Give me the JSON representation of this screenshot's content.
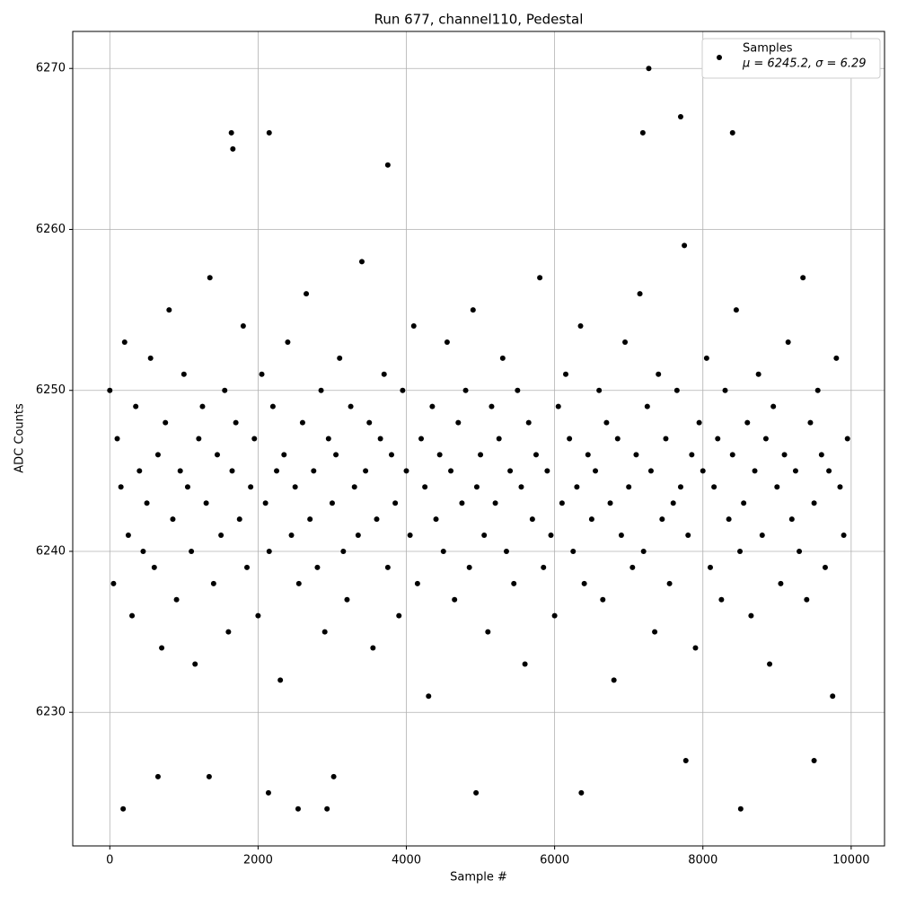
{
  "chart_data": {
    "type": "scatter",
    "title": "Run 677, channel110, Pedestal",
    "x_label": "Sample #",
    "y_label": "ADC Counts",
    "xlim": [
      -500,
      10450
    ],
    "ylim": [
      6221.7,
      6272.3
    ],
    "xticks": [
      0,
      2000,
      4000,
      6000,
      8000,
      10000
    ],
    "yticks": [
      6230,
      6240,
      6250,
      6260,
      6270
    ],
    "grid": true,
    "legend_position": "upper right",
    "annotation": "μ = 6245.2, σ = 6.29",
    "series": [
      {
        "name": "Samples",
        "color": "#000000",
        "x": [
          0,
          50,
          100,
          150,
          200,
          250,
          300,
          350,
          400,
          450,
          500,
          550,
          600,
          650,
          700,
          750,
          800,
          850,
          900,
          950,
          1000,
          1050,
          1100,
          1150,
          1200,
          1250,
          1300,
          1350,
          1400,
          1450,
          1500,
          1550,
          1600,
          1650,
          1700,
          1750,
          1800,
          1850,
          1900,
          1950,
          2000,
          2050,
          2100,
          2150,
          2200,
          2250,
          2300,
          2350,
          2400,
          2450,
          2500,
          2550,
          2600,
          2650,
          2700,
          2750,
          2800,
          2850,
          2900,
          2950,
          3000,
          3050,
          3100,
          3150,
          3200,
          3250,
          3300,
          3350,
          3400,
          3450,
          3500,
          3550,
          3600,
          3650,
          3700,
          3750,
          3800,
          3850,
          3900,
          3950,
          4000,
          4050,
          4100,
          4150,
          4200,
          4250,
          4300,
          4350,
          4400,
          4450,
          4500,
          4550,
          4600,
          4650,
          4700,
          4750,
          4800,
          4850,
          4900,
          4950,
          5000,
          5050,
          5100,
          5150,
          5200,
          5250,
          5300,
          5350,
          5400,
          5450,
          5500,
          5550,
          5600,
          5650,
          5700,
          5750,
          5800,
          5850,
          5900,
          5950,
          6000,
          6050,
          6100,
          6150,
          6200,
          6250,
          6300,
          6350,
          6400,
          6450,
          6500,
          6550,
          6600,
          6650,
          6700,
          6750,
          6800,
          6850,
          6900,
          6950,
          7000,
          7050,
          7100,
          7150,
          7200,
          7250,
          7300,
          7350,
          7400,
          7450,
          7500,
          7550,
          7600,
          7650,
          7700,
          7750,
          7800,
          7850,
          7900,
          7950,
          8000,
          8050,
          8100,
          8150,
          8200,
          8250,
          8300,
          8350,
          8400,
          8450,
          8500,
          8550,
          8600,
          8650,
          8700,
          8750,
          8800,
          8850,
          8900,
          8950,
          9000,
          9050,
          9100,
          9150,
          9200,
          9250,
          9300,
          9350,
          9400,
          9450,
          9500,
          9550,
          9600,
          9650,
          9700,
          9750,
          9800,
          9850,
          9900,
          9950,
          180,
          2140,
          2540,
          2930,
          4940,
          6360,
          8510,
          7270,
          7700,
          1640,
          2150,
          7190,
          8400,
          3750,
          1660,
          650,
          1340,
          3020,
          9500,
          7770
        ],
        "values": [
          6250,
          6238,
          6247,
          6244,
          6253,
          6241,
          6236,
          6249,
          6245,
          6240,
          6243,
          6252,
          6239,
          6246,
          6234,
          6248,
          6255,
          6242,
          6237,
          6245,
          6251,
          6244,
          6240,
          6233,
          6247,
          6249,
          6243,
          6257,
          6238,
          6246,
          6241,
          6250,
          6235,
          6245,
          6248,
          6242,
          6254,
          6239,
          6244,
          6247,
          6236,
          6251,
          6243,
          6240,
          6249,
          6245,
          6232,
          6246,
          6253,
          6241,
          6244,
          6238,
          6248,
          6256,
          6242,
          6245,
          6239,
          6250,
          6235,
          6247,
          6243,
          6246,
          6252,
          6240,
          6237,
          6249,
          6244,
          6241,
          6258,
          6245,
          6248,
          6234,
          6242,
          6247,
          6251,
          6239,
          6246,
          6243,
          6236,
          6250,
          6245,
          6241,
          6254,
          6238,
          6247,
          6244,
          6231,
          6249,
          6242,
          6246,
          6240,
          6253,
          6245,
          6237,
          6248,
          6243,
          6250,
          6239,
          6255,
          6244,
          6246,
          6241,
          6235,
          6249,
          6243,
          6247,
          6252,
          6240,
          6245,
          6238,
          6250,
          6244,
          6233,
          6248,
          6242,
          6246,
          6257,
          6239,
          6245,
          6241,
          6236,
          6249,
          6243,
          6251,
          6247,
          6240,
          6244,
          6254,
          6238,
          6246,
          6242,
          6245,
          6250,
          6237,
          6248,
          6243,
          6232,
          6247,
          6241,
          6253,
          6244,
          6239,
          6246,
          6256,
          6240,
          6249,
          6245,
          6235,
          6251,
          6242,
          6247,
          6238,
          6243,
          6250,
          6244,
          6259,
          6241,
          6246,
          6234,
          6248,
          6245,
          6252,
          6239,
          6244,
          6247,
          6237,
          6250,
          6242,
          6246,
          6255,
          6240,
          6243,
          6248,
          6236,
          6245,
          6251,
          6241,
          6247,
          6233,
          6249,
          6244,
          6238,
          6246,
          6253,
          6242,
          6245,
          6240,
          6257,
          6237,
          6248,
          6243,
          6250,
          6246,
          6239,
          6245,
          6231,
          6252,
          6244,
          6241,
          6247,
          6224,
          6225,
          6224,
          6224,
          6225,
          6225,
          6224,
          6270,
          6267,
          6266,
          6266,
          6266,
          6266,
          6264,
          6265,
          6226,
          6226,
          6226,
          6227,
          6227
        ]
      }
    ]
  }
}
